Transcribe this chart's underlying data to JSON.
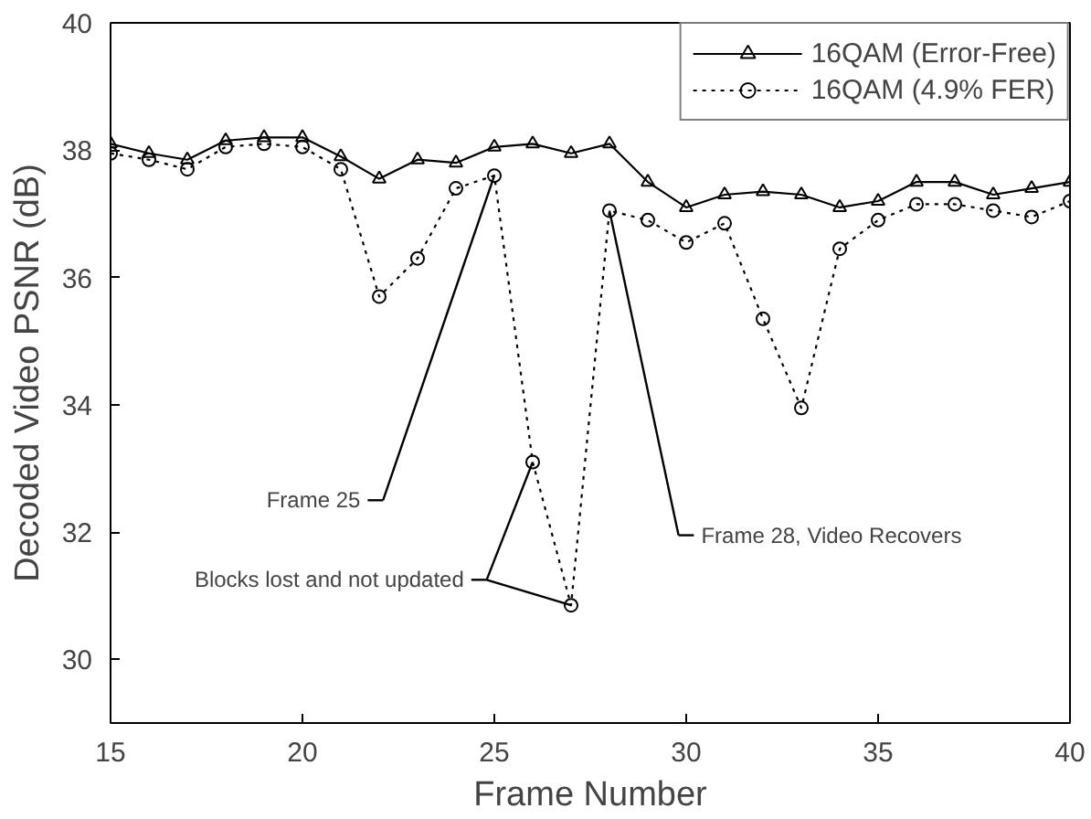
{
  "chart_data": {
    "type": "line",
    "xlabel": "Frame Number",
    "ylabel": "Decoded Video PSNR (dB)",
    "x": [
      15,
      16,
      17,
      18,
      19,
      20,
      21,
      22,
      23,
      24,
      25,
      26,
      27,
      28,
      29,
      30,
      31,
      32,
      33,
      34,
      35,
      36,
      37,
      38,
      39,
      40
    ],
    "series": [
      {
        "name": "16QAM (Error-Free)",
        "color": "#000000",
        "marker": "triangle",
        "line_style": "solid",
        "values": [
          38.1,
          37.95,
          37.85,
          38.15,
          38.2,
          38.2,
          37.9,
          37.55,
          37.85,
          37.8,
          38.05,
          38.1,
          37.95,
          38.1,
          37.5,
          37.1,
          37.3,
          37.35,
          37.3,
          37.1,
          37.2,
          37.5,
          37.5,
          37.3,
          37.4,
          37.5
        ]
      },
      {
        "name": "16QAM (4.9% FER)",
        "color": "#000000",
        "marker": "circle",
        "line_style": "dotted",
        "values": [
          37.95,
          37.85,
          37.7,
          38.05,
          38.1,
          38.05,
          37.7,
          35.7,
          36.3,
          37.4,
          37.6,
          33.1,
          30.85,
          37.05,
          36.9,
          36.55,
          36.85,
          35.35,
          33.95,
          36.45,
          36.9,
          37.15,
          37.15,
          37.05,
          36.95,
          37.2
        ]
      }
    ],
    "xlim": [
      15,
      40
    ],
    "ylim": [
      29,
      40
    ],
    "xticks": [
      15,
      20,
      25,
      30,
      35,
      40
    ],
    "yticks": [
      30,
      32,
      34,
      36,
      38,
      40
    ],
    "annotations": [
      {
        "text": "Frame 25",
        "x": 25,
        "y": 37.6
      },
      {
        "text": "Frame 28, Video Recovers",
        "x": 28,
        "y": 37.05
      },
      {
        "text": "Blocks lost and not updated",
        "x": 27,
        "y": 30.85
      }
    ],
    "legend": "top right",
    "grid": false
  }
}
